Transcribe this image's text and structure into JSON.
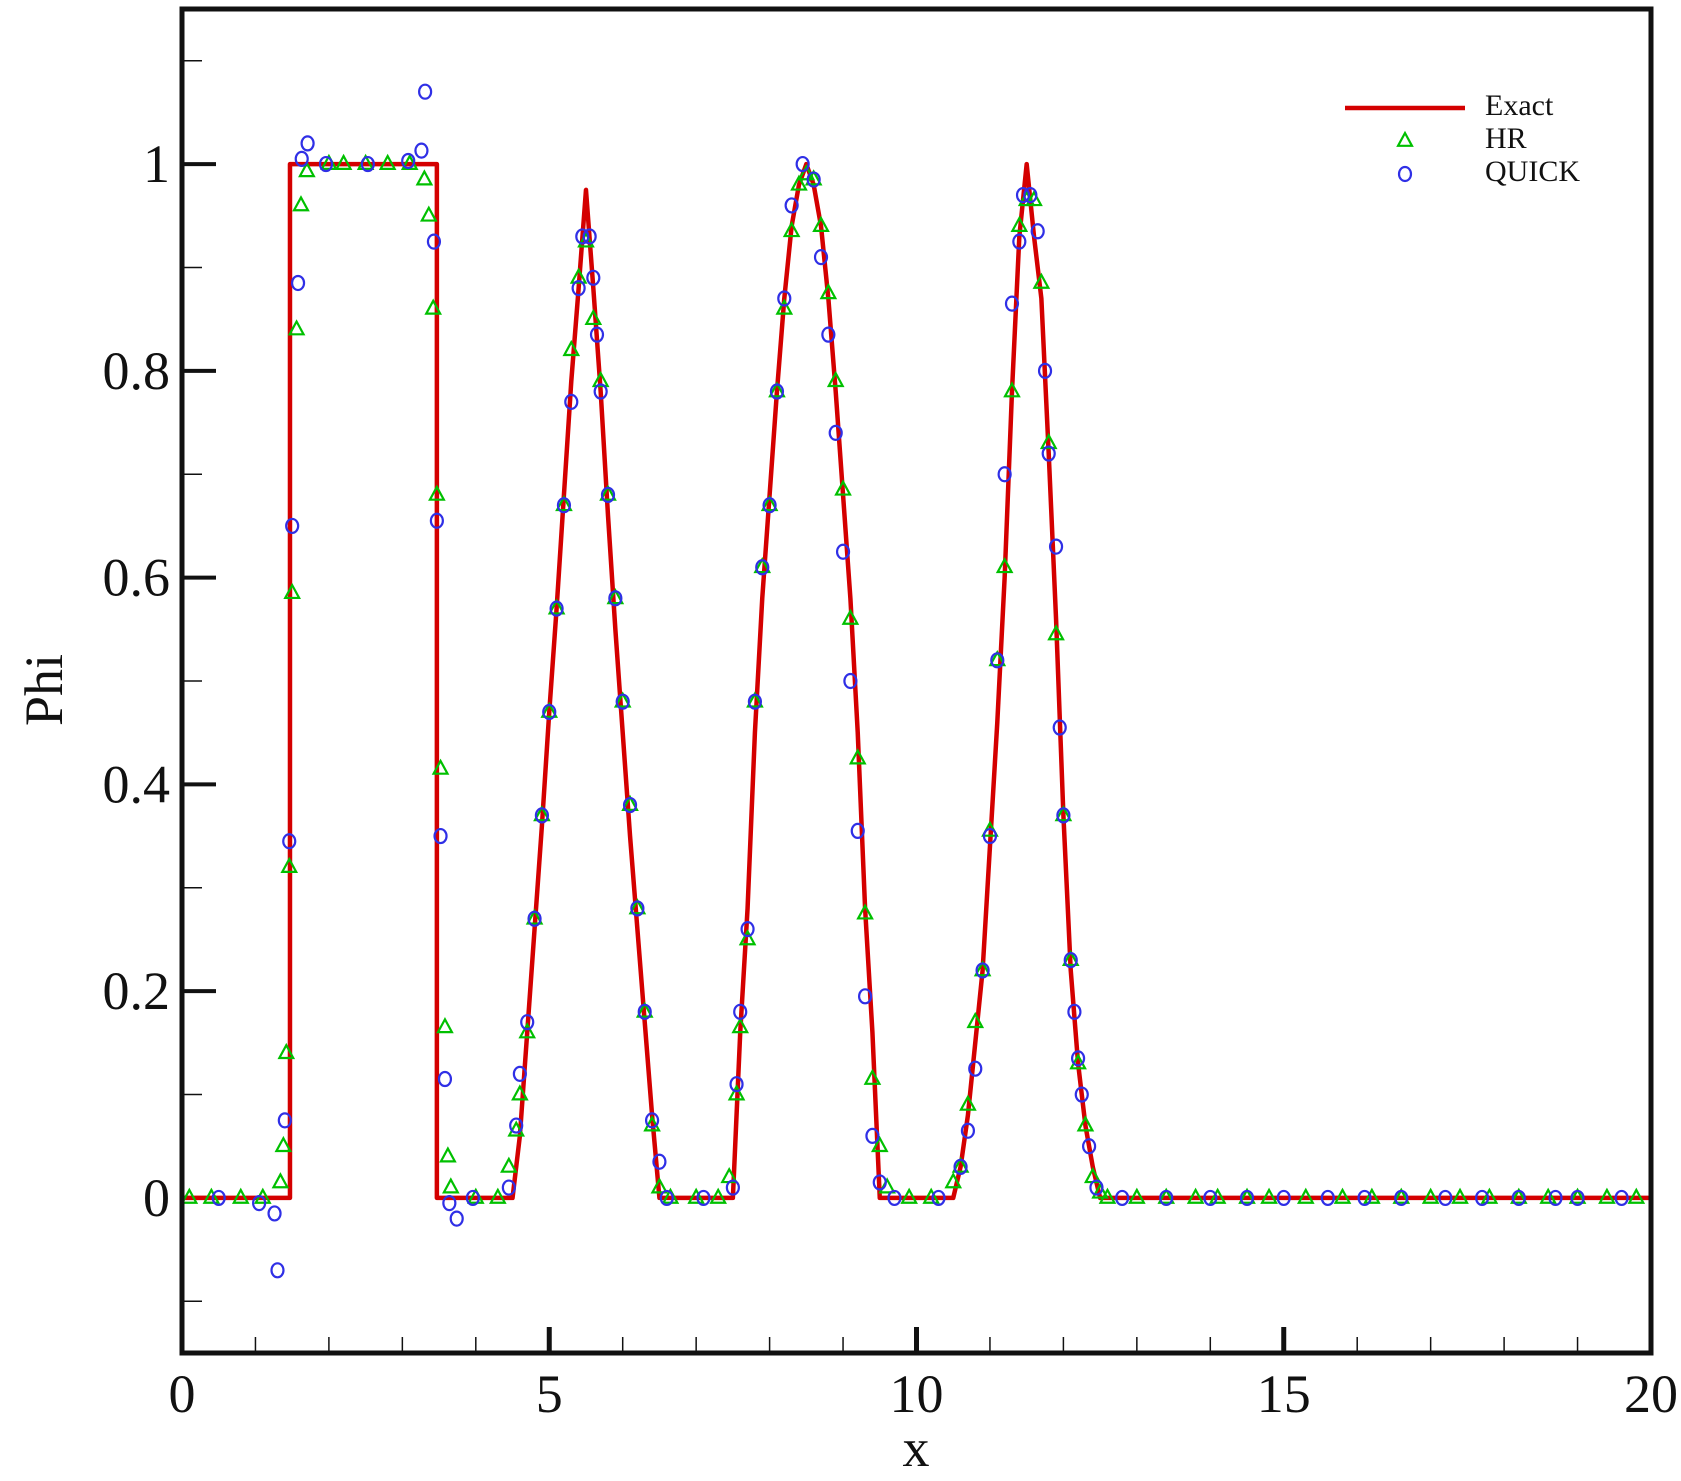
{
  "chart_data": {
    "type": "line",
    "xlabel": "x",
    "ylabel": "Phi",
    "xlim": [
      0,
      20
    ],
    "ylim": [
      -0.15,
      1.15
    ],
    "xticks": [
      0,
      5,
      10,
      15,
      20
    ],
    "yticks": [
      0,
      0.2,
      0.4,
      0.6,
      0.8,
      1
    ],
    "xminorticks": [
      1,
      2,
      3,
      4,
      6,
      7,
      8,
      9,
      11,
      12,
      13,
      14,
      16,
      17,
      18,
      19
    ],
    "yminorticks": [
      -0.1,
      0.1,
      0.3,
      0.5,
      0.7,
      0.9,
      1.1
    ],
    "legend": "top-right",
    "series": [
      {
        "name": "Exact",
        "color": "#d40000",
        "x": [
          0,
          1.47,
          1.47,
          3.47,
          3.47,
          4.5,
          4.6,
          4.7,
          4.8,
          4.9,
          5.0,
          5.1,
          5.2,
          5.3,
          5.4,
          5.5,
          5.6,
          5.7,
          5.8,
          5.9,
          6.0,
          6.1,
          6.2,
          6.3,
          6.4,
          6.5,
          7.5,
          7.6,
          7.7,
          7.8,
          7.9,
          8.0,
          8.1,
          8.2,
          8.3,
          8.4,
          8.5,
          8.6,
          8.7,
          8.8,
          8.9,
          9.0,
          9.1,
          9.2,
          9.3,
          9.4,
          9.5,
          10.5,
          10.6,
          10.7,
          10.8,
          10.9,
          11.0,
          11.1,
          11.2,
          11.3,
          11.4,
          11.5,
          11.6,
          11.7,
          11.8,
          11.9,
          12.0,
          12.1,
          12.2,
          12.3,
          12.4,
          12.5,
          20
        ],
        "values": [
          0,
          0,
          1,
          1,
          0,
          0,
          0.06,
          0.16,
          0.26,
          0.36,
          0.47,
          0.57,
          0.68,
          0.79,
          0.88,
          0.975,
          0.88,
          0.78,
          0.66,
          0.55,
          0.45,
          0.35,
          0.26,
          0.17,
          0.08,
          0,
          0,
          0.16,
          0.28,
          0.45,
          0.58,
          0.68,
          0.78,
          0.87,
          0.94,
          0.98,
          1,
          0.98,
          0.94,
          0.87,
          0.78,
          0.68,
          0.58,
          0.45,
          0.28,
          0.16,
          0,
          0,
          0.03,
          0.08,
          0.15,
          0.22,
          0.34,
          0.46,
          0.6,
          0.78,
          0.93,
          1,
          0.93,
          0.87,
          0.72,
          0.56,
          0.37,
          0.22,
          0.13,
          0.07,
          0.03,
          0,
          0
        ]
      },
      {
        "name": "HR",
        "color": "#00c000",
        "marker": "triangle",
        "x": [
          0.1,
          0.4,
          0.8,
          1.1,
          1.34,
          1.38,
          1.42,
          1.46,
          1.5,
          1.56,
          1.62,
          1.7,
          2.0,
          2.2,
          2.5,
          2.8,
          3.1,
          3.3,
          3.36,
          3.42,
          3.47,
          3.52,
          3.58,
          3.62,
          3.66,
          4.0,
          4.3,
          4.45,
          4.55,
          4.6,
          4.7,
          4.8,
          4.9,
          5.0,
          5.1,
          5.2,
          5.3,
          5.4,
          5.5,
          5.6,
          5.7,
          5.8,
          5.9,
          6.0,
          6.1,
          6.2,
          6.3,
          6.4,
          6.5,
          6.65,
          7.0,
          7.3,
          7.45,
          7.55,
          7.6,
          7.7,
          7.8,
          7.9,
          8.0,
          8.1,
          8.2,
          8.3,
          8.4,
          8.5,
          8.6,
          8.7,
          8.8,
          8.9,
          9.0,
          9.1,
          9.2,
          9.3,
          9.4,
          9.5,
          9.6,
          9.9,
          10.2,
          10.5,
          10.6,
          10.7,
          10.8,
          10.9,
          11.0,
          11.1,
          11.2,
          11.3,
          11.4,
          11.5,
          11.6,
          11.7,
          11.8,
          11.9,
          12.0,
          12.1,
          12.2,
          12.3,
          12.4,
          12.5,
          12.6,
          13.0,
          13.4,
          13.8,
          14.1,
          14.5,
          14.8,
          15.3,
          15.8,
          16.2,
          16.6,
          17.0,
          17.4,
          17.8,
          18.2,
          18.6,
          19.0,
          19.4,
          19.8
        ],
        "values": [
          0,
          0,
          0,
          0,
          0.015,
          0.05,
          0.14,
          0.32,
          0.585,
          0.84,
          0.96,
          0.993,
          1,
          1,
          1,
          1,
          1,
          0.985,
          0.95,
          0.86,
          0.68,
          0.415,
          0.165,
          0.04,
          0.01,
          0,
          0,
          0.03,
          0.065,
          0.1,
          0.16,
          0.27,
          0.37,
          0.47,
          0.57,
          0.67,
          0.82,
          0.89,
          0.925,
          0.85,
          0.79,
          0.68,
          0.58,
          0.48,
          0.38,
          0.28,
          0.18,
          0.07,
          0.01,
          0,
          0,
          0,
          0.02,
          0.1,
          0.165,
          0.25,
          0.48,
          0.61,
          0.67,
          0.78,
          0.86,
          0.935,
          0.98,
          0.99,
          0.985,
          0.94,
          0.875,
          0.79,
          0.685,
          0.56,
          0.425,
          0.275,
          0.115,
          0.05,
          0.01,
          0,
          0,
          0.015,
          0.03,
          0.09,
          0.17,
          0.22,
          0.355,
          0.52,
          0.61,
          0.78,
          0.94,
          0.965,
          0.965,
          0.885,
          0.73,
          0.545,
          0.37,
          0.23,
          0.13,
          0.07,
          0.02,
          0.005,
          0,
          0,
          0,
          0,
          0,
          0,
          0,
          0,
          0,
          0,
          0,
          0,
          0,
          0,
          0,
          0,
          0,
          0,
          0
        ]
      },
      {
        "name": "QUICK",
        "color": "#2f2fe6",
        "marker": "circle",
        "x": [
          0.5,
          1.05,
          1.26,
          1.3,
          1.4,
          1.46,
          1.5,
          1.58,
          1.63,
          1.71,
          1.96,
          2.53,
          3.08,
          3.26,
          3.31,
          3.43,
          3.47,
          3.52,
          3.58,
          3.64,
          3.74,
          3.96,
          4.45,
          4.55,
          4.6,
          4.7,
          4.8,
          4.9,
          5.0,
          5.1,
          5.2,
          5.3,
          5.4,
          5.45,
          5.55,
          5.6,
          5.65,
          5.7,
          5.8,
          5.9,
          6.0,
          6.1,
          6.2,
          6.3,
          6.4,
          6.5,
          6.6,
          7.1,
          7.5,
          7.55,
          7.6,
          7.7,
          7.8,
          7.9,
          8.0,
          8.1,
          8.2,
          8.3,
          8.45,
          8.6,
          8.7,
          8.8,
          8.9,
          9.0,
          9.1,
          9.2,
          9.3,
          9.4,
          9.5,
          9.7,
          10.3,
          10.6,
          10.7,
          10.8,
          10.9,
          11.0,
          11.1,
          11.2,
          11.3,
          11.4,
          11.45,
          11.55,
          11.65,
          11.75,
          11.8,
          11.9,
          11.95,
          12.0,
          12.1,
          12.15,
          12.2,
          12.25,
          12.35,
          12.45,
          12.8,
          13.4,
          14.0,
          14.5,
          15.0,
          15.6,
          16.1,
          16.6,
          17.2,
          17.7,
          18.2,
          18.7,
          19.0,
          19.6
        ],
        "values": [
          0,
          -0.005,
          -0.015,
          -0.07,
          0.075,
          0.345,
          0.65,
          0.885,
          1.005,
          1.02,
          1,
          1,
          1.003,
          1.013,
          1.07,
          0.925,
          0.655,
          0.35,
          0.115,
          -0.005,
          -0.02,
          0,
          0.01,
          0.07,
          0.12,
          0.17,
          0.27,
          0.37,
          0.47,
          0.57,
          0.67,
          0.77,
          0.88,
          0.93,
          0.93,
          0.89,
          0.835,
          0.78,
          0.68,
          0.58,
          0.48,
          0.38,
          0.28,
          0.18,
          0.075,
          0.035,
          0,
          0,
          0.01,
          0.11,
          0.18,
          0.26,
          0.48,
          0.61,
          0.67,
          0.78,
          0.87,
          0.96,
          1.0,
          0.985,
          0.91,
          0.835,
          0.74,
          0.625,
          0.5,
          0.355,
          0.195,
          0.06,
          0.015,
          0,
          0,
          0.03,
          0.065,
          0.125,
          0.22,
          0.35,
          0.52,
          0.7,
          0.865,
          0.925,
          0.97,
          0.97,
          0.935,
          0.8,
          0.72,
          0.63,
          0.455,
          0.37,
          0.23,
          0.18,
          0.135,
          0.1,
          0.05,
          0.01,
          0,
          0,
          0,
          0,
          0,
          0,
          0,
          0,
          0,
          0,
          0,
          0,
          0,
          0
        ]
      }
    ]
  }
}
